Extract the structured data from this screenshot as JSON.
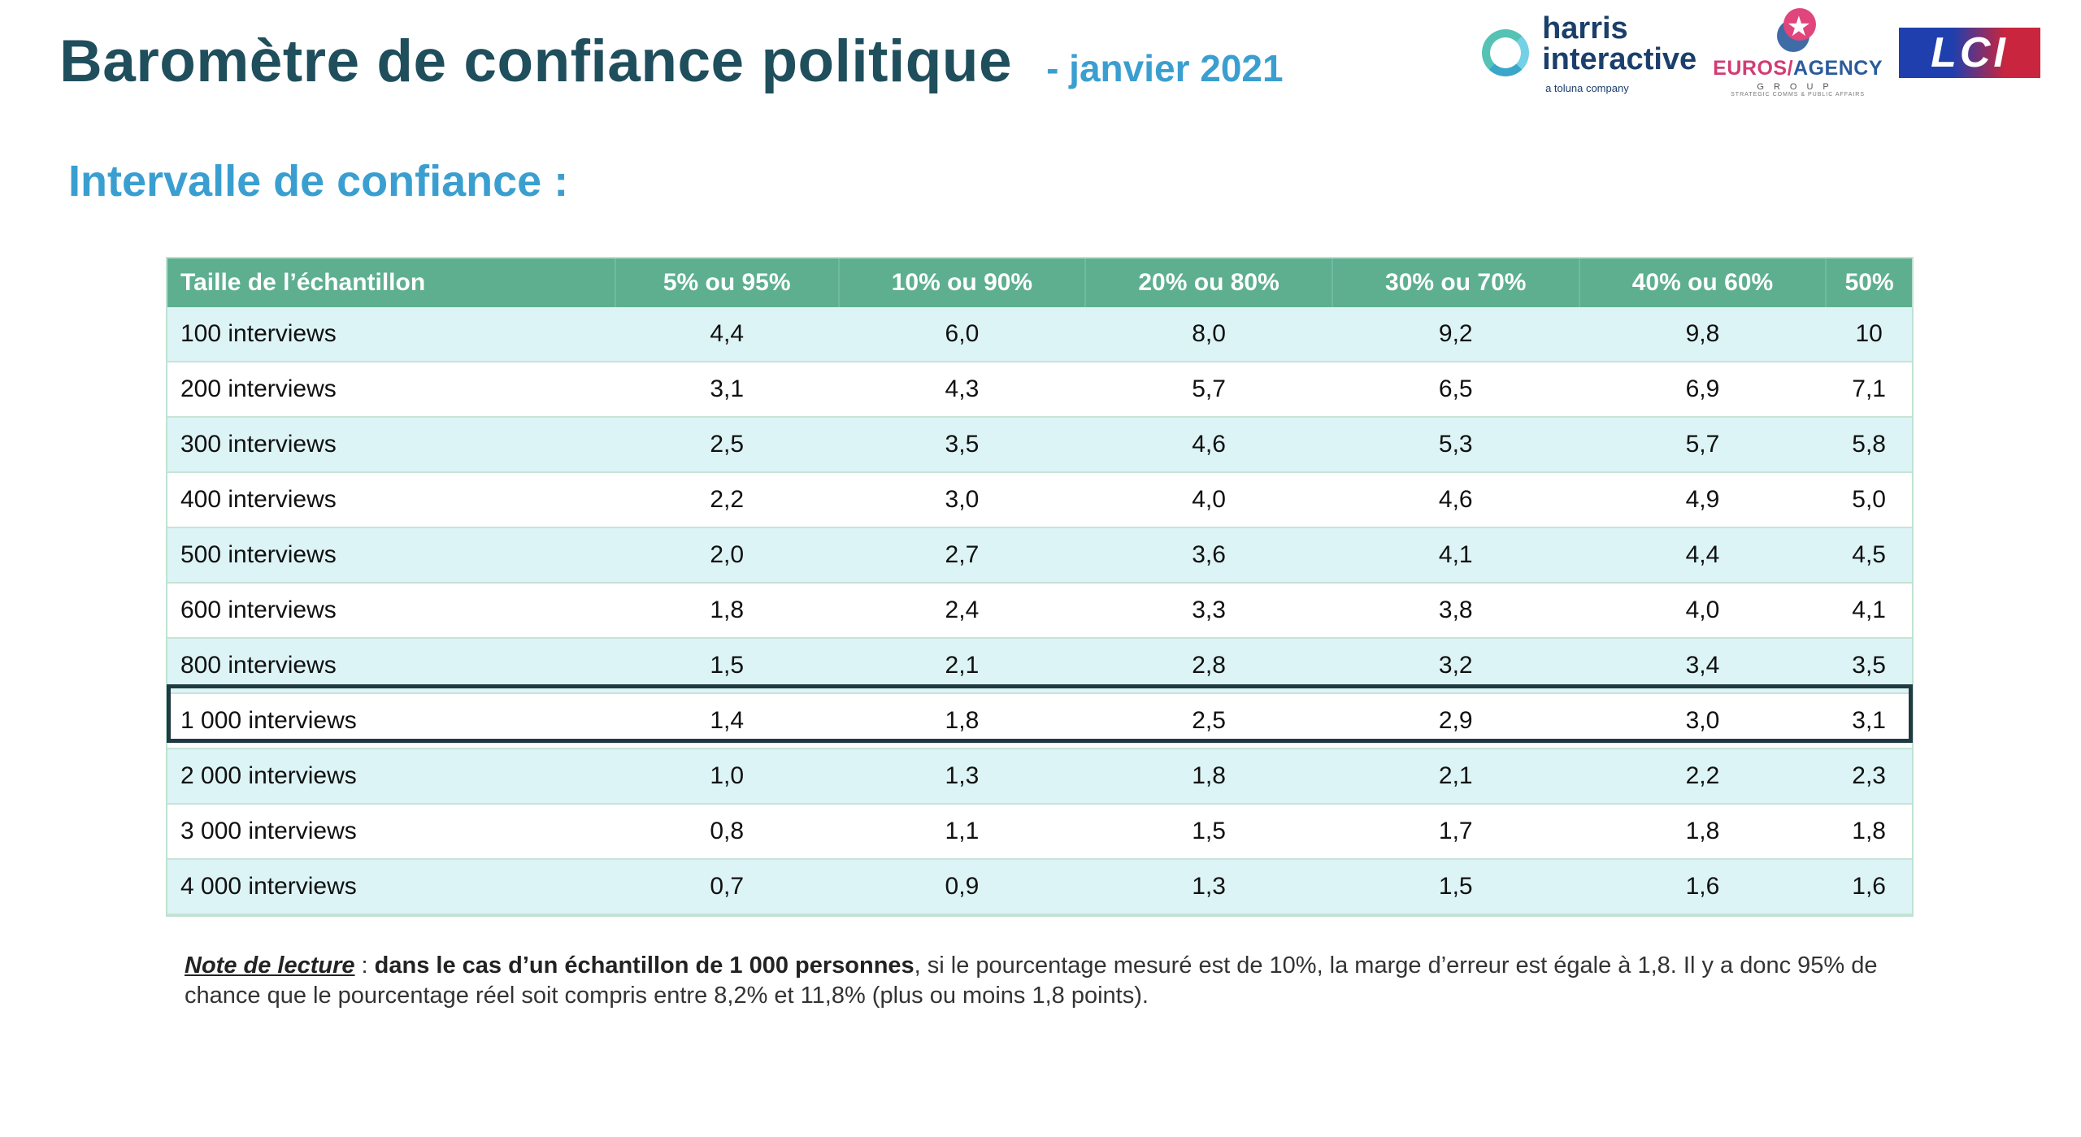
{
  "header": {
    "title": "Baromètre de confiance politique",
    "date": "- janvier 2021"
  },
  "logos": {
    "harris_word1": "harris",
    "harris_word2": "interactive",
    "harris_sub": "a toluna company",
    "euros_name1": "EUROS",
    "euros_name2": "AGENCY",
    "euros_group": "GROUP",
    "euros_tag": "STRATEGIC COMMS & PUBLIC AFFAIRS",
    "lci": "LCI"
  },
  "subtitle": "Intervalle de confiance :",
  "table": {
    "columns": [
      "Taille de l’échantillon",
      "5% ou 95%",
      "10% ou 90%",
      "20% ou 80%",
      "30% ou 70%",
      "40% ou 60%",
      "50%"
    ],
    "rows": [
      [
        "100 interviews",
        "4,4",
        "6,0",
        "8,0",
        "9,2",
        "9,8",
        "10"
      ],
      [
        "200 interviews",
        "3,1",
        "4,3",
        "5,7",
        "6,5",
        "6,9",
        "7,1"
      ],
      [
        "300 interviews",
        "2,5",
        "3,5",
        "4,6",
        "5,3",
        "5,7",
        "5,8"
      ],
      [
        "400 interviews",
        "2,2",
        "3,0",
        "4,0",
        "4,6",
        "4,9",
        "5,0"
      ],
      [
        "500 interviews",
        "2,0",
        "2,7",
        "3,6",
        "4,1",
        "4,4",
        "4,5"
      ],
      [
        "600 interviews",
        "1,8",
        "2,4",
        "3,3",
        "3,8",
        "4,0",
        "4,1"
      ],
      [
        "800 interviews",
        "1,5",
        "2,1",
        "2,8",
        "3,2",
        "3,4",
        "3,5"
      ],
      [
        "1 000 interviews",
        "1,4",
        "1,8",
        "2,5",
        "2,9",
        "3,0",
        "3,1"
      ],
      [
        "2 000 interviews",
        "1,0",
        "1,3",
        "1,8",
        "2,1",
        "2,2",
        "2,3"
      ],
      [
        "3 000 interviews",
        "0,8",
        "1,1",
        "1,5",
        "1,7",
        "1,8",
        "1,8"
      ],
      [
        "4 000 interviews",
        "0,7",
        "0,9",
        "1,3",
        "1,5",
        "1,6",
        "1,6"
      ]
    ],
    "highlighted_row": 7
  },
  "note": {
    "lead": "Note de lecture",
    "sep": " : ",
    "strong": "dans le cas d’un échantillon de 1 000 personnes",
    "rest": ", si le pourcentage mesuré est de 10%, la marge d’erreur est égale à 1,8. Il y a donc 95% de chance que le pourcentage réel soit compris entre 8,2% et 11,8% (plus ou moins 1,8 points)."
  },
  "colors": {
    "title": "#1f4e5c",
    "accent": "#3a9fd0",
    "header_bg": "#5daf90",
    "row_alt": "#ddf4f6",
    "highlight_border": "#1f3a40"
  }
}
